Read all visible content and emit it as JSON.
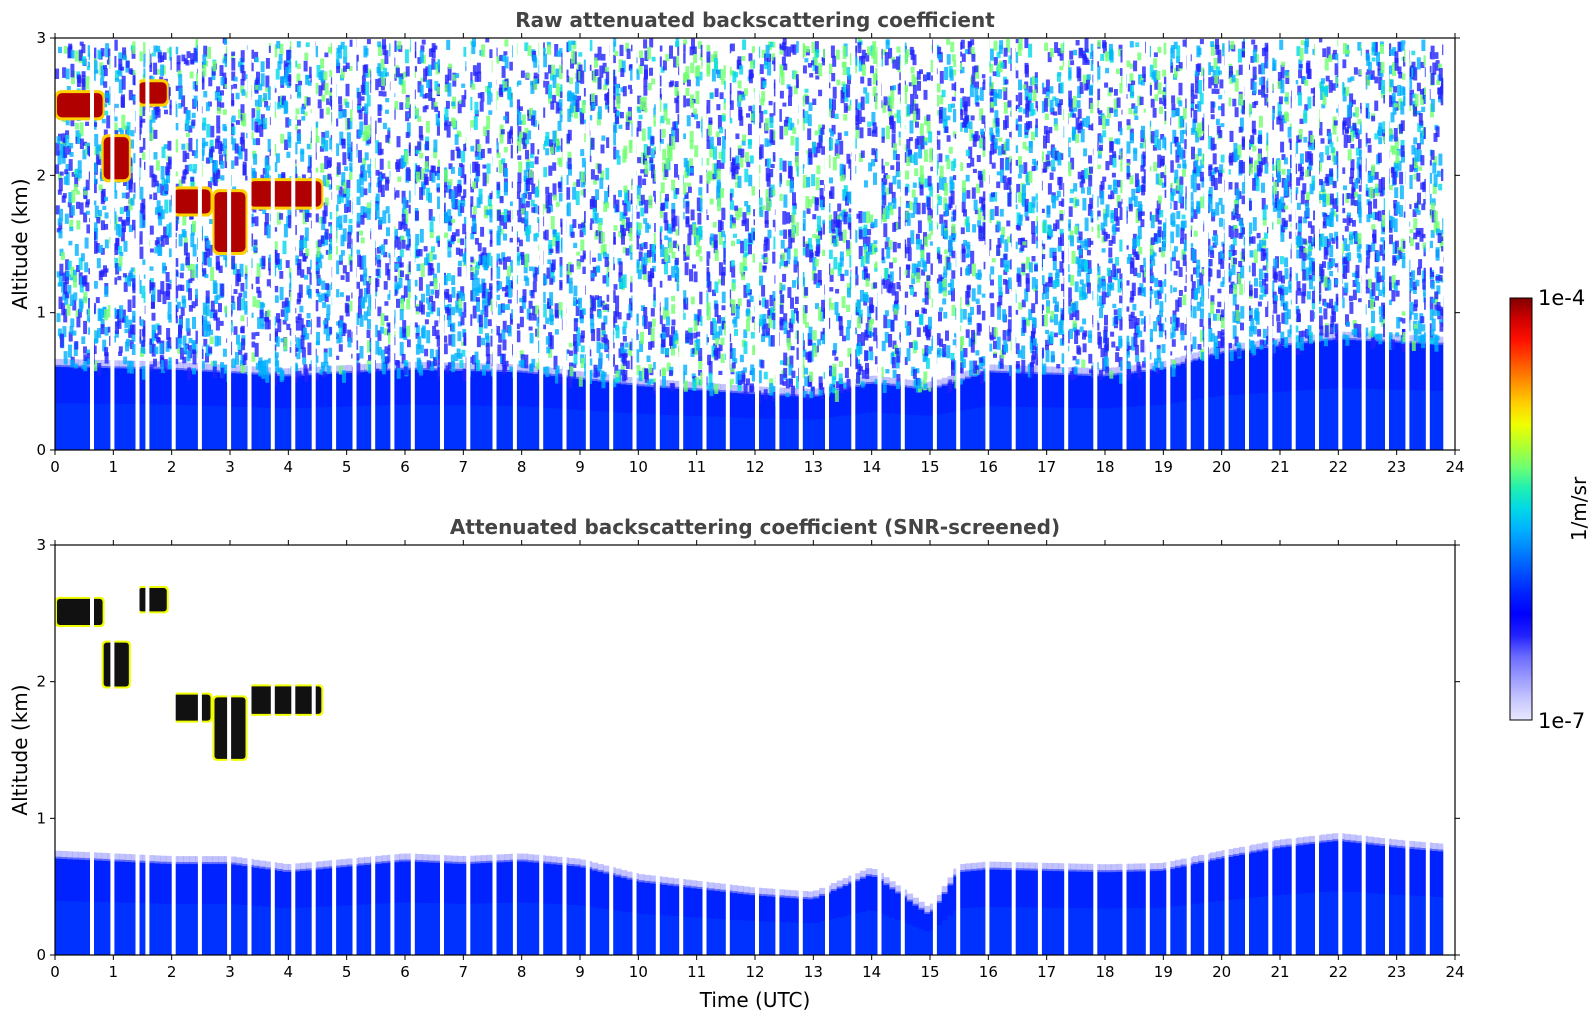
{
  "chart_data": [
    {
      "type": "heatmap",
      "title": "Raw attenuated backscattering coefficient",
      "xlabel": "",
      "ylabel": "Altitude (km)",
      "xlim": [
        0,
        24
      ],
      "ylim": [
        0,
        3
      ],
      "x_ticks": [
        0,
        1,
        2,
        3,
        4,
        5,
        6,
        7,
        8,
        9,
        10,
        11,
        12,
        13,
        14,
        15,
        16,
        17,
        18,
        19,
        20,
        21,
        22,
        23,
        24
      ],
      "y_ticks": [
        0,
        1,
        2,
        3
      ],
      "profile_gaps_utc": [
        0.6,
        0.95,
        1.38,
        1.55,
        2.0,
        2.45,
        2.95,
        3.3,
        3.7,
        4.05,
        4.4,
        4.75,
        5.1,
        5.42,
        5.75,
        6.1,
        6.6,
        7.05,
        7.5,
        7.85,
        8.3,
        8.7,
        9.1,
        9.5,
        9.9,
        10.3,
        10.7,
        11.1,
        11.5,
        12.0,
        12.35,
        12.75,
        13.2,
        13.65,
        14.1,
        14.5,
        15.05,
        15.45,
        15.95,
        16.4,
        16.85,
        17.3,
        17.8,
        18.3,
        18.7,
        19.05,
        19.4,
        19.7,
        20.05,
        20.4,
        20.8,
        21.2,
        21.6,
        22.0,
        22.4,
        22.8,
        23.15,
        23.5
      ],
      "cloud_layers": [
        {
          "time_utc": [
            0.0,
            0.85
          ],
          "altitude_km": [
            2.4,
            2.62
          ]
        },
        {
          "time_utc": [
            0.8,
            1.3
          ],
          "altitude_km": [
            1.95,
            2.3
          ]
        },
        {
          "time_utc": [
            1.4,
            1.95
          ],
          "altitude_km": [
            2.5,
            2.7
          ]
        },
        {
          "time_utc": [
            2.0,
            2.7
          ],
          "altitude_km": [
            1.7,
            1.92
          ]
        },
        {
          "time_utc": [
            2.7,
            3.3
          ],
          "altitude_km": [
            1.42,
            1.9
          ]
        },
        {
          "time_utc": [
            3.3,
            4.6
          ],
          "altitude_km": [
            1.75,
            1.98
          ]
        }
      ],
      "boundary_layer_top_km": [
        [
          0,
          0.62
        ],
        [
          2,
          0.6
        ],
        [
          4,
          0.55
        ],
        [
          6,
          0.6
        ],
        [
          8,
          0.58
        ],
        [
          10,
          0.48
        ],
        [
          12,
          0.42
        ],
        [
          13,
          0.4
        ],
        [
          14,
          0.5
        ],
        [
          15,
          0.45
        ],
        [
          16,
          0.58
        ],
        [
          18,
          0.55
        ],
        [
          19,
          0.6
        ],
        [
          20,
          0.72
        ],
        [
          22,
          0.82
        ],
        [
          23.8,
          0.78
        ]
      ]
    },
    {
      "type": "heatmap",
      "title": "Attenuated backscattering coefficient (SNR-screened)",
      "xlabel": "Time (UTC)",
      "ylabel": "Altitude (km)",
      "xlim": [
        0,
        24
      ],
      "ylim": [
        0,
        3
      ],
      "x_ticks": [
        0,
        1,
        2,
        3,
        4,
        5,
        6,
        7,
        8,
        9,
        10,
        11,
        12,
        13,
        14,
        15,
        16,
        17,
        18,
        19,
        20,
        21,
        22,
        23,
        24
      ],
      "y_ticks": [
        0,
        1,
        2,
        3
      ],
      "boundary_layer_top_km": [
        [
          0,
          0.72
        ],
        [
          1,
          0.7
        ],
        [
          2,
          0.68
        ],
        [
          3,
          0.68
        ],
        [
          4,
          0.62
        ],
        [
          5,
          0.66
        ],
        [
          6,
          0.7
        ],
        [
          7,
          0.68
        ],
        [
          8,
          0.7
        ],
        [
          9,
          0.66
        ],
        [
          10,
          0.55
        ],
        [
          11,
          0.5
        ],
        [
          12,
          0.45
        ],
        [
          13,
          0.42
        ],
        [
          14,
          0.6
        ],
        [
          15,
          0.3
        ],
        [
          15.5,
          0.62
        ],
        [
          16,
          0.64
        ],
        [
          17,
          0.63
        ],
        [
          18,
          0.62
        ],
        [
          19,
          0.63
        ],
        [
          20,
          0.72
        ],
        [
          21,
          0.8
        ],
        [
          22,
          0.85
        ],
        [
          23,
          0.8
        ],
        [
          23.8,
          0.77
        ]
      ]
    }
  ],
  "colorbar": {
    "label": "1/m/sr",
    "max_label": "1e-4",
    "min_label": "1e-7",
    "scale": "log",
    "range": [
      1e-07,
      0.0001
    ],
    "colors": [
      "#e8e8ff",
      "#c6c6ff",
      "#9a9aff",
      "#6b6bff",
      "#2222ff",
      "#0000ff",
      "#0022ff",
      "#0050ff",
      "#0080ff",
      "#00b0ff",
      "#00d8e8",
      "#20f0b0",
      "#70ff70",
      "#b0ff30",
      "#f0ff00",
      "#ffd000",
      "#ff9000",
      "#ff5000",
      "#ff1000",
      "#d00000",
      "#800000"
    ]
  }
}
